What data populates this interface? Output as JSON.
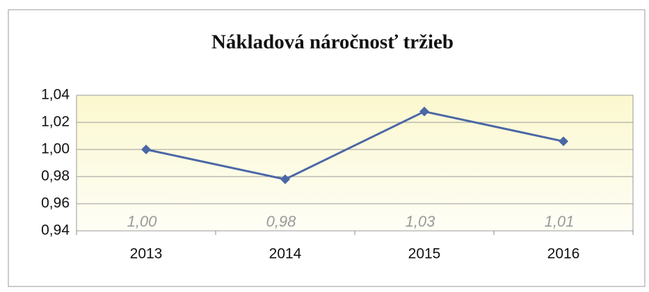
{
  "chart_data": {
    "type": "line",
    "title": "Nákladová náročnosť tržieb",
    "categories": [
      "2013",
      "2014",
      "2015",
      "2016"
    ],
    "values": [
      1.0,
      0.978,
      1.028,
      1.006
    ],
    "value_labels": [
      "1,00",
      "0,98",
      "1,03",
      "1,01"
    ],
    "color": "#4a67a6",
    "ylim": [
      0.94,
      1.04
    ],
    "yticks": [
      {
        "value": 0.94,
        "label": "0,94"
      },
      {
        "value": 0.96,
        "label": "0,96"
      },
      {
        "value": 0.98,
        "label": "0,98"
      },
      {
        "value": 1.0,
        "label": "1,00"
      },
      {
        "value": 1.02,
        "label": "1,02"
      },
      {
        "value": 1.04,
        "label": "1,04"
      }
    ],
    "grid": true
  }
}
